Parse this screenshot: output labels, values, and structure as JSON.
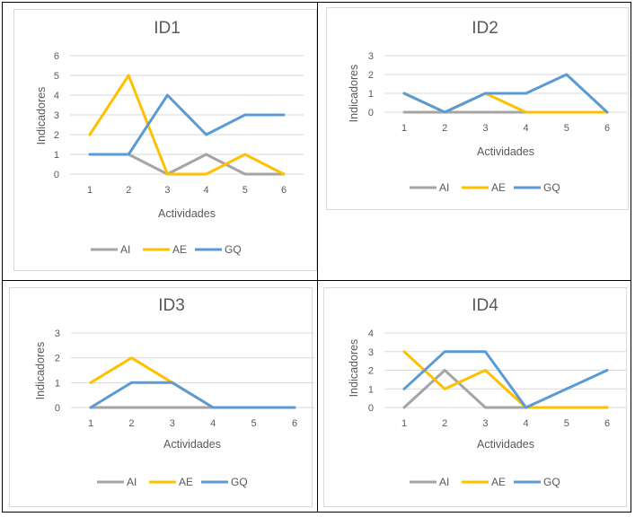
{
  "chart_data": [
    {
      "type": "line",
      "title": "ID1",
      "xlabel": "Actividades",
      "ylabel": "Indicadores",
      "categories": [
        "1",
        "2",
        "3",
        "4",
        "5",
        "6"
      ],
      "ylim": [
        0,
        6
      ],
      "yticks": [
        0,
        1,
        2,
        3,
        4,
        5,
        6
      ],
      "grid": true,
      "legend": "bottom",
      "series": [
        {
          "name": "AI",
          "color": "#a5a5a5",
          "values": [
            1,
            1,
            0,
            1,
            0,
            0
          ]
        },
        {
          "name": "AE",
          "color": "#ffc000",
          "values": [
            2,
            5,
            0,
            0,
            1,
            0
          ]
        },
        {
          "name": "GQ",
          "color": "#5b9bd5",
          "values": [
            1,
            1,
            4,
            2,
            3,
            3
          ]
        }
      ]
    },
    {
      "type": "line",
      "title": "ID2",
      "xlabel": "Actividades",
      "ylabel": "Indicadores",
      "categories": [
        "1",
        "2",
        "3",
        "4",
        "5",
        "6"
      ],
      "ylim": [
        0,
        3
      ],
      "yticks": [
        0,
        1,
        2,
        3
      ],
      "grid": true,
      "legend": "bottom",
      "series": [
        {
          "name": "AI",
          "color": "#a5a5a5",
          "values": [
            0,
            0,
            0,
            0,
            0,
            0
          ]
        },
        {
          "name": "AE",
          "color": "#ffc000",
          "values": [
            1,
            0,
            1,
            0,
            0,
            0
          ]
        },
        {
          "name": "GQ",
          "color": "#5b9bd5",
          "values": [
            1,
            0,
            1,
            1,
            2,
            0
          ]
        }
      ]
    },
    {
      "type": "line",
      "title": "ID3",
      "xlabel": "Actividades",
      "ylabel": "Indicadores",
      "categories": [
        "1",
        "2",
        "3",
        "4",
        "5",
        "6"
      ],
      "ylim": [
        0,
        3
      ],
      "yticks": [
        0,
        1,
        2,
        3
      ],
      "grid": true,
      "legend": "bottom",
      "series": [
        {
          "name": "AI",
          "color": "#a5a5a5",
          "values": [
            0,
            0,
            0,
            0,
            0,
            0
          ]
        },
        {
          "name": "AE",
          "color": "#ffc000",
          "values": [
            1,
            2,
            1,
            0,
            0,
            0
          ]
        },
        {
          "name": "GQ",
          "color": "#5b9bd5",
          "values": [
            0,
            1,
            1,
            0,
            0,
            0
          ]
        }
      ]
    },
    {
      "type": "line",
      "title": "ID4",
      "xlabel": "Actividades",
      "ylabel": "Indicadores",
      "categories": [
        "1",
        "2",
        "3",
        "4",
        "5",
        "6"
      ],
      "ylim": [
        0,
        4
      ],
      "yticks": [
        0,
        1,
        2,
        3,
        4
      ],
      "grid": true,
      "legend": "bottom",
      "series": [
        {
          "name": "AI",
          "color": "#a5a5a5",
          "values": [
            0,
            2,
            0,
            0,
            0,
            0
          ]
        },
        {
          "name": "AE",
          "color": "#ffc000",
          "values": [
            3,
            1,
            2,
            0,
            0,
            0
          ]
        },
        {
          "name": "GQ",
          "color": "#5b9bd5",
          "values": [
            1,
            3,
            3,
            0,
            1,
            2
          ]
        }
      ]
    }
  ]
}
